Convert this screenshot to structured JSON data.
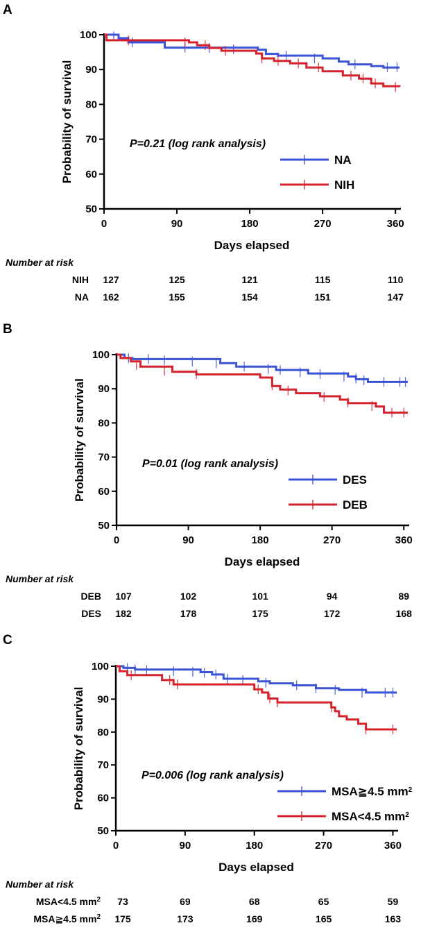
{
  "chart_data": [
    {
      "type": "line",
      "panel_label": "A",
      "ylabel": "Probability of survival",
      "xlabel": "Days elapsed",
      "xticks": [
        "0",
        "90",
        "180",
        "270",
        "360"
      ],
      "yticks": [
        "50",
        "60",
        "70",
        "80",
        "90",
        "100"
      ],
      "xlim": [
        0,
        365
      ],
      "ylim": [
        50,
        100
      ],
      "annotation": "P=0.21 (log rank analysis)",
      "legend_position": "right-middle",
      "series": [
        {
          "name": "NA",
          "color": "#3b53d6",
          "steps": [
            [
              0,
              100
            ],
            [
              18,
              99
            ],
            [
              30,
              97.8
            ],
            [
              75,
              96.3
            ],
            [
              190,
              95.7
            ],
            [
              200,
              94.5
            ],
            [
              215,
              94
            ],
            [
              270,
              93.2
            ],
            [
              290,
              92.3
            ],
            [
              302,
              91.5
            ],
            [
              330,
              91
            ],
            [
              345,
              90.6
            ],
            [
              365,
              90.6
            ]
          ],
          "censors": [
            [
              12,
              99.5
            ],
            [
              35,
              97.8
            ],
            [
              100,
              96.3
            ],
            [
              130,
              96.2
            ],
            [
              160,
              95.8
            ],
            [
              225,
              94
            ],
            [
              260,
              93.2
            ],
            [
              310,
              91.5
            ],
            [
              350,
              90.6
            ],
            [
              362,
              90.6
            ]
          ]
        },
        {
          "name": "NIH",
          "color": "#d6222c",
          "steps": [
            [
              0,
              100
            ],
            [
              3,
              98.4
            ],
            [
              105,
              97.8
            ],
            [
              115,
              97
            ],
            [
              130,
              96.2
            ],
            [
              145,
              95.4
            ],
            [
              188,
              94.6
            ],
            [
              195,
              93.2
            ],
            [
              210,
              92.5
            ],
            [
              230,
              91.8
            ],
            [
              250,
              90.6
            ],
            [
              270,
              89.5
            ],
            [
              295,
              88.3
            ],
            [
              315,
              87.4
            ],
            [
              330,
              86
            ],
            [
              345,
              85.2
            ],
            [
              365,
              85
            ]
          ],
          "censors": [
            [
              30,
              98.4
            ],
            [
              100,
              97.8
            ],
            [
              125,
              97
            ],
            [
              150,
              95.4
            ],
            [
              195,
              93.2
            ],
            [
              215,
              92.5
            ],
            [
              240,
              91.8
            ],
            [
              265,
              90.6
            ],
            [
              305,
              88.3
            ],
            [
              320,
              87.4
            ],
            [
              335,
              86
            ],
            [
              360,
              85
            ]
          ]
        }
      ],
      "risk_table": {
        "title": "Number at risk",
        "rows": [
          {
            "label": "NIH",
            "values": [
              "127",
              "125",
              "121",
              "115",
              "110"
            ]
          },
          {
            "label": "NA",
            "values": [
              "162",
              "155",
              "154",
              "151",
              "147"
            ]
          }
        ]
      }
    },
    {
      "type": "line",
      "panel_label": "B",
      "ylabel": "Probability of survival",
      "xlabel": "Days elapsed",
      "xticks": [
        "0",
        "90",
        "180",
        "270",
        "360"
      ],
      "yticks": [
        "50",
        "60",
        "70",
        "80",
        "90",
        "100"
      ],
      "xlim": [
        0,
        365
      ],
      "ylim": [
        50,
        100
      ],
      "annotation": "P=0.01 (log rank analysis)",
      "legend_position": "right-middle",
      "series": [
        {
          "name": "DES",
          "color": "#3b53d6",
          "steps": [
            [
              0,
              100
            ],
            [
              10,
              99
            ],
            [
              20,
              98.7
            ],
            [
              130,
              97.5
            ],
            [
              150,
              96.5
            ],
            [
              200,
              95.5
            ],
            [
              240,
              94.5
            ],
            [
              290,
              93.6
            ],
            [
              300,
              92.8
            ],
            [
              315,
              92
            ],
            [
              365,
              92
            ]
          ],
          "censors": [
            [
              15,
              99
            ],
            [
              40,
              98.7
            ],
            [
              60,
              98.4
            ],
            [
              95,
              98
            ],
            [
              125,
              97.5
            ],
            [
              160,
              96.5
            ],
            [
              190,
              95.8
            ],
            [
              205,
              95.5
            ],
            [
              230,
              94.8
            ],
            [
              255,
              94.3
            ],
            [
              285,
              93.6
            ],
            [
              300,
              93
            ],
            [
              310,
              92.5
            ],
            [
              335,
              92
            ],
            [
              355,
              92
            ],
            [
              362,
              92
            ]
          ]
        },
        {
          "name": "DEB",
          "color": "#d6222c",
          "steps": [
            [
              0,
              100
            ],
            [
              5,
              99
            ],
            [
              18,
              98
            ],
            [
              30,
              96.5
            ],
            [
              70,
              95
            ],
            [
              100,
              94.2
            ],
            [
              180,
              93.3
            ],
            [
              195,
              90.8
            ],
            [
              205,
              89.8
            ],
            [
              225,
              88.7
            ],
            [
              255,
              87.8
            ],
            [
              280,
              86.8
            ],
            [
              290,
              85.8
            ],
            [
              325,
              84.8
            ],
            [
              335,
              83
            ],
            [
              365,
              83
            ]
          ],
          "censors": [
            [
              25,
              97
            ],
            [
              60,
              95.3
            ],
            [
              100,
              94.3
            ],
            [
              195,
              91
            ],
            [
              215,
              89.5
            ],
            [
              260,
              87.6
            ],
            [
              290,
              86
            ],
            [
              320,
              85
            ],
            [
              345,
              83
            ],
            [
              360,
              83
            ]
          ]
        }
      ],
      "risk_table": {
        "title": "Number at risk",
        "rows": [
          {
            "label": "DEB",
            "values": [
              "107",
              "102",
              "101",
              "94",
              "89"
            ]
          },
          {
            "label": "DES",
            "values": [
              "182",
              "178",
              "175",
              "172",
              "168"
            ]
          }
        ]
      }
    },
    {
      "type": "line",
      "panel_label": "C",
      "ylabel": "Probability of survival",
      "xlabel": "Days elapsed",
      "xticks": [
        "0",
        "90",
        "180",
        "270",
        "360"
      ],
      "yticks": [
        "50",
        "60",
        "70",
        "80",
        "90",
        "100"
      ],
      "xlim": [
        0,
        365
      ],
      "ylim": [
        50,
        100
      ],
      "annotation": "P=0.006 (log rank analysis)",
      "legend_position": "right-middle",
      "series": [
        {
          "name": "MSA≧4.5 mm",
          "legend_sup": "2",
          "color": "#3b53d6",
          "steps": [
            [
              0,
              100
            ],
            [
              10,
              99.5
            ],
            [
              25,
              99
            ],
            [
              110,
              98.2
            ],
            [
              125,
              97.5
            ],
            [
              140,
              96.2
            ],
            [
              185,
              95.4
            ],
            [
              200,
              94.8
            ],
            [
              230,
              94.2
            ],
            [
              260,
              93.3
            ],
            [
              290,
              92.8
            ],
            [
              325,
              92
            ],
            [
              365,
              92
            ]
          ],
          "censors": [
            [
              15,
              99.5
            ],
            [
              25,
              99
            ],
            [
              40,
              98.8
            ],
            [
              75,
              98.5
            ],
            [
              100,
              98.3
            ],
            [
              115,
              98
            ],
            [
              130,
              97.5
            ],
            [
              145,
              96.2
            ],
            [
              165,
              95.8
            ],
            [
              195,
              95
            ],
            [
              235,
              94.2
            ],
            [
              260,
              93.3
            ],
            [
              285,
              92.8
            ],
            [
              320,
              92
            ],
            [
              350,
              92
            ],
            [
              360,
              92
            ]
          ]
        },
        {
          "name": "MSA<4.5 mm",
          "legend_sup": "2",
          "color": "#d6222c",
          "steps": [
            [
              0,
              100
            ],
            [
              5,
              98.5
            ],
            [
              15,
              97.3
            ],
            [
              60,
              95.8
            ],
            [
              75,
              94.5
            ],
            [
              180,
              93
            ],
            [
              190,
              92
            ],
            [
              198,
              90.2
            ],
            [
              210,
              89
            ],
            [
              280,
              87.5
            ],
            [
              285,
              86.3
            ],
            [
              290,
              84.8
            ],
            [
              300,
              83.8
            ],
            [
              315,
              82.5
            ],
            [
              325,
              80.8
            ],
            [
              365,
              80.8
            ]
          ],
          "censors": [
            [
              20,
              97.3
            ],
            [
              70,
              95.8
            ],
            [
              80,
              94.5
            ],
            [
              185,
              93
            ],
            [
              200,
              90.2
            ],
            [
              210,
              89
            ],
            [
              280,
              87.5
            ],
            [
              325,
              80.8
            ],
            [
              360,
              80.8
            ]
          ]
        }
      ],
      "risk_table": {
        "title": "Number at risk",
        "rows": [
          {
            "label": "MSA<4.5 mm",
            "sup": "2",
            "values": [
              "73",
              "69",
              "68",
              "65",
              "59"
            ]
          },
          {
            "label": "MSA≧4.5 mm",
            "sup": "2",
            "values": [
              "175",
              "173",
              "169",
              "165",
              "163"
            ]
          }
        ]
      }
    }
  ]
}
